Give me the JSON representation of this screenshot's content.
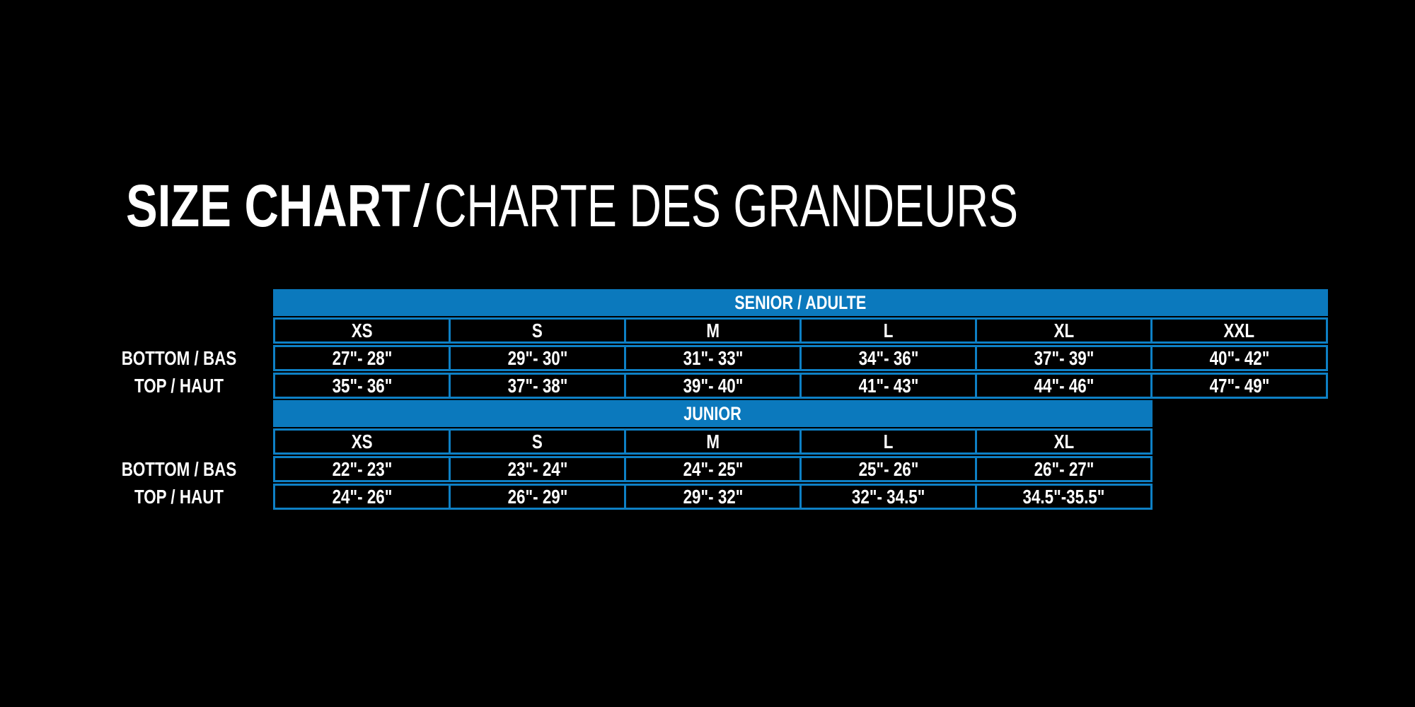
{
  "page": {
    "background": "#000000",
    "text_color": "#ffffff",
    "accent_blue": "#0b79bd",
    "border_blue": "#0e80c5"
  },
  "title": {
    "main": "SIZE CHART",
    "separator": "/",
    "secondary": "CHARTE DES GRANDEURS"
  },
  "chart_data": [
    {
      "type": "table",
      "title": "SENIOR / ADULTE",
      "sizes": [
        "XS",
        "S",
        "M",
        "L",
        "XL",
        "XXL"
      ],
      "rows": [
        {
          "label": "BOTTOM / BAS",
          "values": [
            "27\"- 28\"",
            "29\"- 30\"",
            "31\"- 33\"",
            "34\"- 36\"",
            "37\"- 39\"",
            "40\"- 42\""
          ]
        },
        {
          "label": "TOP / HAUT",
          "values": [
            "35\"- 36\"",
            "37\"- 38\"",
            "39\"- 40\"",
            "41\"- 43\"",
            "44\"- 46\"",
            "47\"- 49\""
          ]
        }
      ]
    },
    {
      "type": "table",
      "title": "JUNIOR",
      "sizes": [
        "XS",
        "S",
        "M",
        "L",
        "XL"
      ],
      "rows": [
        {
          "label": "BOTTOM / BAS",
          "values": [
            "22\"- 23\"",
            "23\"- 24\"",
            "24\"- 25\"",
            "25\"- 26\"",
            "26\"- 27\""
          ]
        },
        {
          "label": "TOP / HAUT",
          "values": [
            "24\"- 26\"",
            "26\"- 29\"",
            "29\"- 32\"",
            "32\"- 34.5\"",
            "34.5\"-35.5\""
          ]
        }
      ]
    }
  ]
}
